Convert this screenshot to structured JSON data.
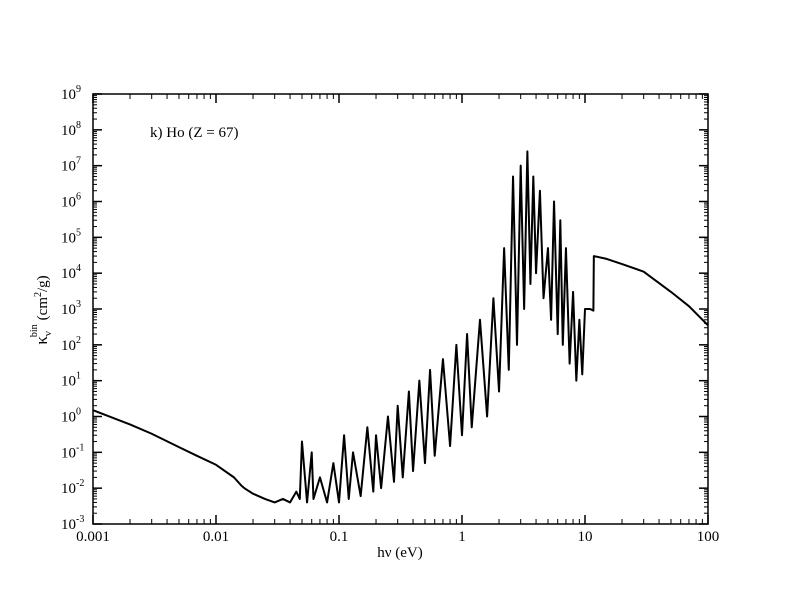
{
  "chart_data": {
    "type": "line",
    "annotation": "k) Ho (Z = 67)",
    "x_label": "hν (eV)",
    "y_label": {
      "symbol": "κ",
      "subscript": "ν",
      "superscript": "bin",
      "unit": "(cm",
      "unit_exponent": "2",
      "unit_end": "/g)"
    },
    "log_x": true,
    "log_y": true,
    "xlim": [
      0.001,
      100
    ],
    "xticks": [
      0.001,
      0.01,
      0.1,
      1,
      10,
      100
    ],
    "ylim": [
      0.001,
      1000000000
    ],
    "yticks": [
      {
        "value": 0.001,
        "label": "10",
        "exponent": "-3"
      },
      {
        "value": 0.01,
        "label": "10",
        "exponent": "-2"
      },
      {
        "value": 0.1,
        "label": "10",
        "exponent": "-1"
      },
      {
        "value": 1,
        "label": "10",
        "exponent": "0"
      },
      {
        "value": 10,
        "label": "10",
        "exponent": "1"
      },
      {
        "value": 100,
        "label": "10",
        "exponent": "2"
      },
      {
        "value": 1000,
        "label": "10",
        "exponent": "3"
      },
      {
        "value": 10000,
        "label": "10",
        "exponent": "4"
      },
      {
        "value": 100000,
        "label": "10",
        "exponent": "5"
      },
      {
        "value": 1000000,
        "label": "10",
        "exponent": "6"
      },
      {
        "value": 10000000,
        "label": "10",
        "exponent": "7"
      },
      {
        "value": 100000000,
        "label": "10",
        "exponent": "8"
      },
      {
        "value": 1000000000,
        "label": "10",
        "exponent": "9"
      }
    ],
    "color": "#000000",
    "x": [
      0.001,
      0.002,
      0.003,
      0.005,
      0.007,
      0.01,
      0.014,
      0.016,
      0.017,
      0.02,
      0.025,
      0.03,
      0.035,
      0.04,
      0.045,
      0.048,
      0.05,
      0.055,
      0.06,
      0.062,
      0.07,
      0.08,
      0.09,
      0.1,
      0.11,
      0.12,
      0.13,
      0.15,
      0.17,
      0.19,
      0.2,
      0.22,
      0.25,
      0.28,
      0.3,
      0.33,
      0.37,
      0.4,
      0.45,
      0.5,
      0.55,
      0.6,
      0.7,
      0.8,
      0.9,
      1,
      1.1,
      1.2,
      1.4,
      1.6,
      1.8,
      2,
      2.2,
      2.4,
      2.6,
      2.8,
      3,
      3.2,
      3.4,
      3.6,
      3.8,
      4,
      4.3,
      4.6,
      5,
      5.3,
      5.6,
      6,
      6.3,
      6.6,
      7,
      7.5,
      8,
      8.5,
      9,
      9.5,
      10,
      10.5,
      11,
      11.7,
      11.8,
      15,
      20,
      30,
      50,
      70,
      100
    ],
    "values": [
      1.5,
      0.6,
      0.33,
      0.14,
      0.08,
      0.045,
      0.02,
      0.012,
      0.01,
      0.007,
      0.005,
      0.004,
      0.005,
      0.004,
      0.008,
      0.005,
      0.2,
      0.004,
      0.1,
      0.005,
      0.02,
      0.004,
      0.05,
      0.004,
      0.3,
      0.005,
      0.1,
      0.006,
      0.5,
      0.008,
      0.3,
      0.01,
      1,
      0.015,
      2,
      0.02,
      5,
      0.03,
      10,
      0.05,
      20,
      0.08,
      40,
      0.15,
      100,
      0.3,
      200,
      0.5,
      500,
      1,
      2000,
      5,
      50000,
      20,
      5000000,
      100,
      10000000,
      1000,
      25000000,
      5000,
      5000000,
      10000,
      2000000,
      2000,
      50000,
      500,
      1000000,
      200,
      300000,
      100,
      50000,
      30,
      3000,
      10,
      500,
      15,
      1000,
      1000,
      1000,
      900,
      30000,
      25000,
      18000,
      11000,
      3000,
      1200,
      350
    ]
  }
}
